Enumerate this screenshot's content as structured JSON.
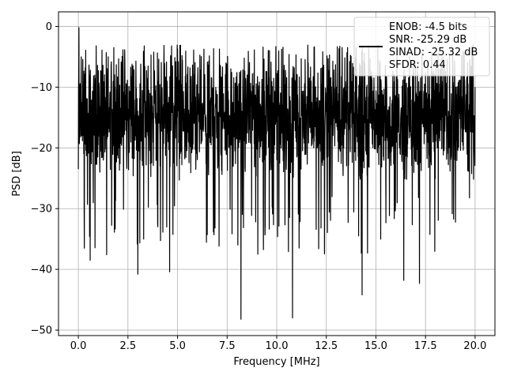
{
  "chart_data": {
    "type": "line",
    "title": "",
    "xlabel": "Frequency [MHz]",
    "ylabel": "PSD [dB]",
    "xlim": [
      -1.0,
      21.0
    ],
    "ylim": [
      -50.9,
      2.4
    ],
    "xticks": [
      0.0,
      2.5,
      5.0,
      7.5,
      10.0,
      12.5,
      15.0,
      17.5,
      20.0
    ],
    "xtick_labels": [
      "0.0",
      "2.5",
      "5.0",
      "7.5",
      "10.0",
      "12.5",
      "15.0",
      "17.5",
      "20.0"
    ],
    "yticks": [
      0,
      -10,
      -20,
      -30,
      -40,
      -50
    ],
    "ytick_labels": [
      "0",
      "−10",
      "−20",
      "−30",
      "−40",
      "−50"
    ],
    "grid": true,
    "legend_position": "top-right",
    "legend_lines": [
      "ENOB: -4.5 bits",
      "SNR: -25.29 dB",
      "SINAD: -25.32 dB",
      "SFDR: 0.44"
    ],
    "series": [
      {
        "color": "#000000",
        "x_range": [
          0.0,
          20.0
        ],
        "num_points": 2048,
        "noise_band_db": [
          -26,
          -3
        ],
        "points": [
          {
            "x": 0.0,
            "y": -23.5
          },
          {
            "x": 0.03,
            "y": -0.2
          },
          {
            "x": 0.08,
            "y": -10.5
          },
          {
            "x": 0.15,
            "y": -5.0
          },
          {
            "x": 0.3,
            "y": -36.5
          },
          {
            "x": 0.6,
            "y": -38.5
          },
          {
            "x": 3.0,
            "y": -40.8
          },
          {
            "x": 4.6,
            "y": -40.4
          },
          {
            "x": 8.2,
            "y": -48.2
          },
          {
            "x": 10.8,
            "y": -48.0
          },
          {
            "x": 14.3,
            "y": -44.2
          },
          {
            "x": 16.4,
            "y": -41.8
          },
          {
            "x": 17.2,
            "y": -42.3
          },
          {
            "x": 20.0,
            "y": -10.0
          }
        ]
      }
    ]
  }
}
